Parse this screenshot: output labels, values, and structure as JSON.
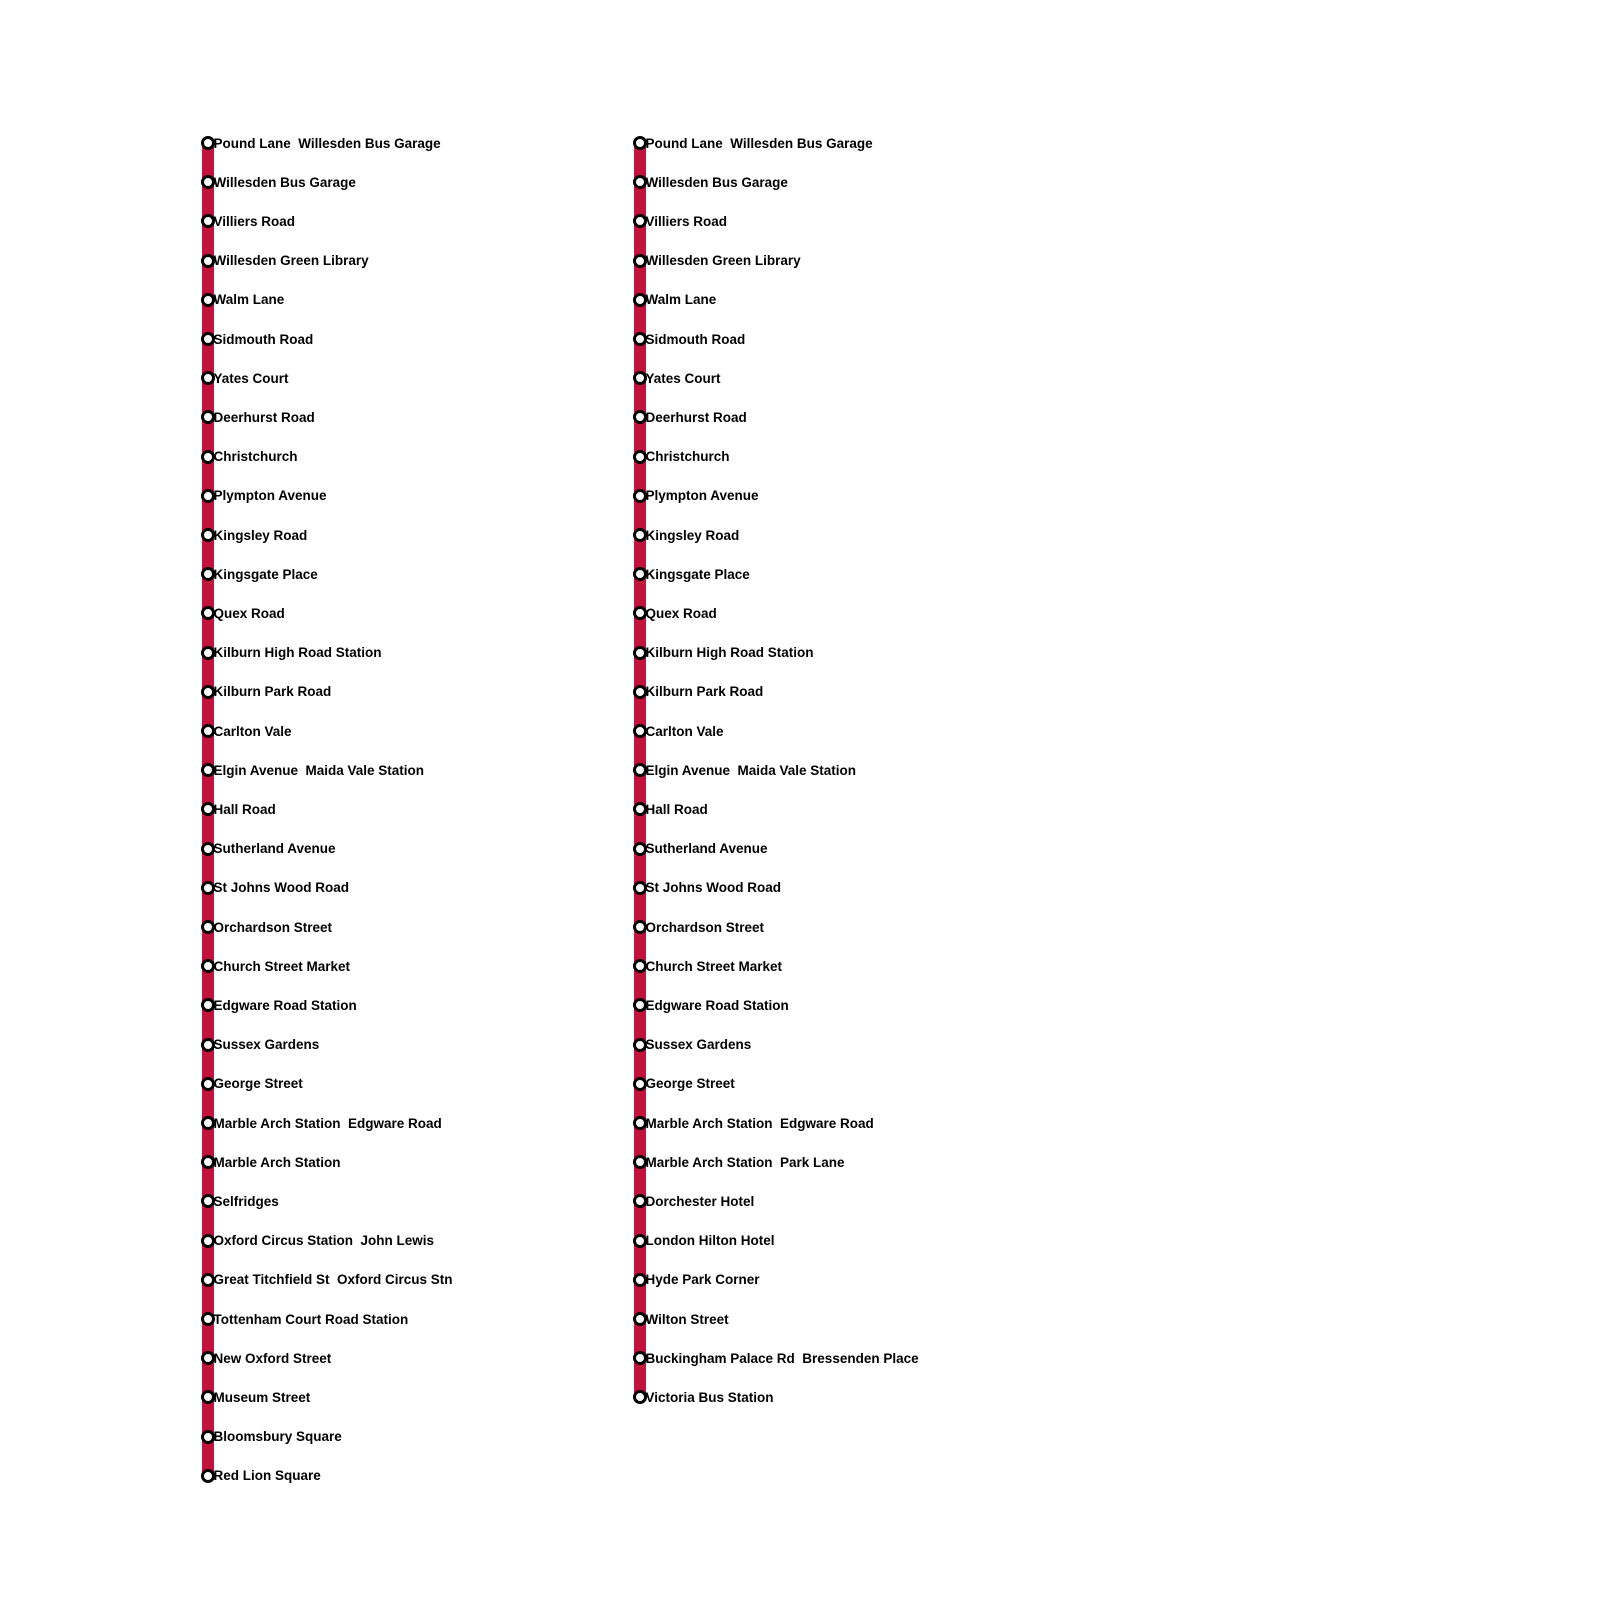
{
  "line_color": "#c0143c",
  "routes": [
    {
      "stops": [
        "Pound Lane  Willesden Bus Garage",
        "Willesden Bus Garage",
        "Villiers Road",
        "Willesden Green Library",
        "Walm Lane",
        "Sidmouth Road",
        "Yates Court",
        "Deerhurst Road",
        "Christchurch",
        "Plympton Avenue",
        "Kingsley Road",
        "Kingsgate Place",
        "Quex Road",
        "Kilburn High Road Station",
        "Kilburn Park Road",
        "Carlton Vale",
        "Elgin Avenue  Maida Vale Station",
        "Hall Road",
        "Sutherland Avenue",
        "St Johns Wood Road",
        "Orchardson Street",
        "Church Street Market",
        "Edgware Road Station",
        "Sussex Gardens",
        "George Street",
        "Marble Arch Station  Edgware Road",
        "Marble Arch Station",
        "Selfridges",
        "Oxford Circus Station  John Lewis",
        "Great Titchfield St  Oxford Circus Stn",
        "Tottenham Court Road Station",
        "New Oxford Street",
        "Museum Street",
        "Bloomsbury Square",
        "Red Lion Square"
      ]
    },
    {
      "stops": [
        "Pound Lane  Willesden Bus Garage",
        "Willesden Bus Garage",
        "Villiers Road",
        "Willesden Green Library",
        "Walm Lane",
        "Sidmouth Road",
        "Yates Court",
        "Deerhurst Road",
        "Christchurch",
        "Plympton Avenue",
        "Kingsley Road",
        "Kingsgate Place",
        "Quex Road",
        "Kilburn High Road Station",
        "Kilburn Park Road",
        "Carlton Vale",
        "Elgin Avenue  Maida Vale Station",
        "Hall Road",
        "Sutherland Avenue",
        "St Johns Wood Road",
        "Orchardson Street",
        "Church Street Market",
        "Edgware Road Station",
        "Sussex Gardens",
        "George Street",
        "Marble Arch Station  Edgware Road",
        "Marble Arch Station  Park Lane",
        "Dorchester Hotel",
        "London Hilton Hotel",
        "Hyde Park Corner",
        "Wilton Street",
        "Buckingham Palace Rd  Bressenden Place",
        "Victoria Bus Station"
      ]
    }
  ]
}
